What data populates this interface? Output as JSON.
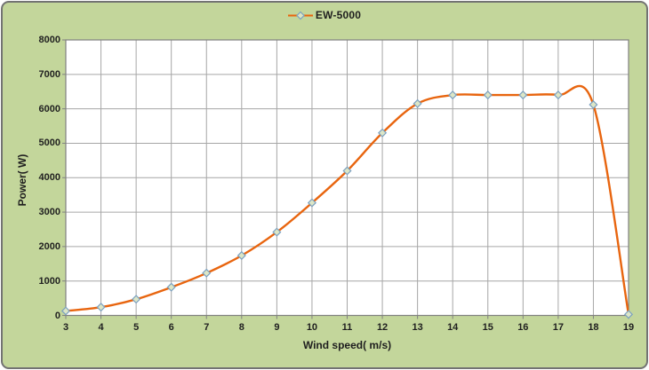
{
  "chart_data": {
    "type": "line",
    "title": "",
    "x": [
      3,
      4,
      5,
      6,
      7,
      8,
      9,
      10,
      11,
      12,
      13,
      14,
      15,
      16,
      17,
      18,
      19
    ],
    "series": [
      {
        "name": "EW-5000",
        "values": [
          130,
          240,
          470,
          820,
          1230,
          1740,
          2420,
          3270,
          4200,
          5300,
          6150,
          6400,
          6400,
          6400,
          6400,
          6120,
          30
        ],
        "line_color": "#e8650f",
        "marker": "diamond",
        "marker_fill": "#dce6c6",
        "marker_stroke": "#7ba0c0",
        "smooth": true
      }
    ],
    "xlabel": "Wind speed( m/s)",
    "ylabel": "Power( W)",
    "xlim": [
      3,
      19
    ],
    "ylim": [
      0,
      8000
    ],
    "x_ticks": [
      3,
      4,
      5,
      6,
      7,
      8,
      9,
      10,
      11,
      12,
      13,
      14,
      15,
      16,
      17,
      18,
      19
    ],
    "y_ticks": [
      0,
      1000,
      2000,
      3000,
      4000,
      5000,
      6000,
      7000,
      8000
    ],
    "grid": true,
    "legend_position": "top-center"
  },
  "colors": {
    "chart_background": "#c3d69b",
    "plot_background": "#ffffff",
    "gridline": "#a6a6a6",
    "axis": "#808080",
    "tick": "#808080",
    "text": "#1f1f1f",
    "frame_border": "#737373"
  }
}
